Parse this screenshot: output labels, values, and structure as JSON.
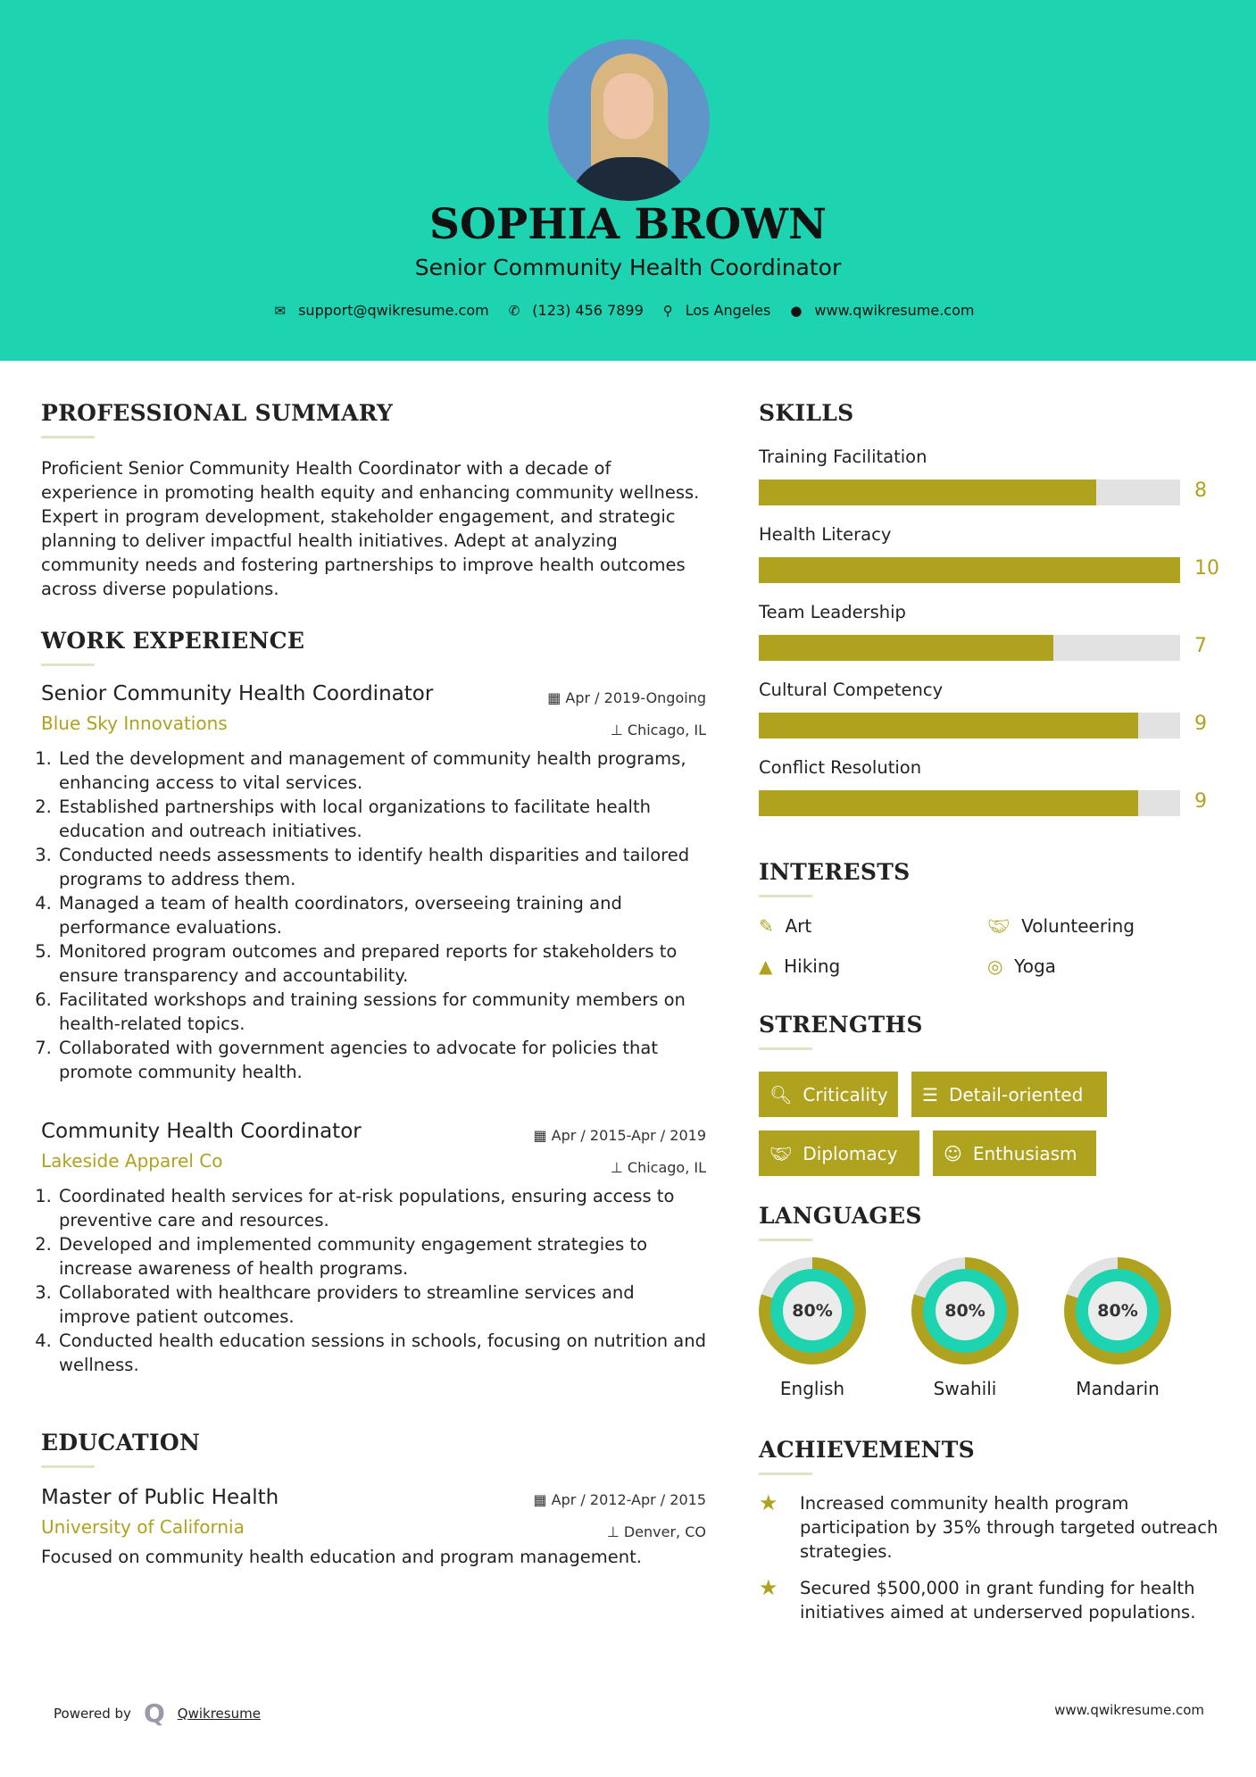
{
  "header": {
    "name": "SOPHIA BROWN",
    "title": "Senior Community Health Coordinator",
    "contacts": [
      {
        "icon": "envelope-icon",
        "text": "support@qwikresume.com"
      },
      {
        "icon": "phone-icon",
        "text": "(123) 456 7899"
      },
      {
        "icon": "map-pin-icon",
        "text": "Los Angeles"
      },
      {
        "icon": "globe-icon",
        "text": "www.qwikresume.com"
      }
    ]
  },
  "colors": {
    "header_bg": "#1dd3b0",
    "accent": "#aea21f",
    "bar_bg": "#e2e2e2"
  },
  "summary": {
    "heading": "PROFESSIONAL SUMMARY",
    "text": "Proficient Senior Community Health Coordinator with a decade of experience in promoting health equity and enhancing community wellness. Expert in program development, stakeholder engagement, and strategic planning to deliver impactful health initiatives. Adept at analyzing community needs and fostering partnerships to improve health outcomes across diverse populations."
  },
  "work": {
    "heading": "WORK EXPERIENCE",
    "jobs": [
      {
        "title": "Senior Community Health Coordinator",
        "company": "Blue Sky Innovations",
        "date": "Apr / 2019-Ongoing",
        "location": "Chicago, IL",
        "items": [
          "Led the development and management of community health programs, enhancing access to vital services.",
          "Established partnerships with local organizations to facilitate health education and outreach initiatives.",
          "Conducted needs assessments to identify health disparities and tailored programs to address them.",
          "Managed a team of health coordinators, overseeing training and performance evaluations.",
          "Monitored program outcomes and prepared reports for stakeholders to ensure transparency and accountability.",
          "Facilitated workshops and training sessions for community members on health-related topics.",
          "Collaborated with government agencies to advocate for policies that promote community health."
        ]
      },
      {
        "title": "Community Health Coordinator",
        "company": "Lakeside Apparel Co",
        "date": "Apr / 2015-Apr / 2019",
        "location": "Chicago, IL",
        "items": [
          "Coordinated health services for at-risk populations, ensuring access to preventive care and resources.",
          "Developed and implemented community engagement strategies to increase awareness of health programs.",
          "Collaborated with healthcare providers to streamline services and improve patient outcomes.",
          "Conducted health education sessions in schools, focusing on nutrition and wellness."
        ]
      }
    ]
  },
  "education": {
    "heading": "EDUCATION",
    "degree": "Master of Public Health",
    "school": "University of California",
    "date": "Apr / 2012-Apr / 2015",
    "location": "Denver, CO",
    "text": "Focused on community health education and program management."
  },
  "skills": {
    "heading": "SKILLS",
    "max": 10,
    "items": [
      {
        "label": "Training Facilitation",
        "value": 8
      },
      {
        "label": "Health Literacy",
        "value": 10
      },
      {
        "label": "Team Leadership",
        "value": 7
      },
      {
        "label": "Cultural Competency",
        "value": 9
      },
      {
        "label": "Conflict Resolution",
        "value": 9
      }
    ]
  },
  "interests": {
    "heading": "INTERESTS",
    "items": [
      {
        "label": "Art",
        "icon": "paintbrush-icon"
      },
      {
        "label": "Volunteering",
        "icon": "handshake-icon"
      },
      {
        "label": "Hiking",
        "icon": "tree-icon"
      },
      {
        "label": "Yoga",
        "icon": "lifebuoy-icon"
      }
    ]
  },
  "strengths": {
    "heading": "STRENGTHS",
    "items": [
      {
        "label": "Criticality",
        "icon": "search-icon"
      },
      {
        "label": "Detail-oriented",
        "icon": "list-icon"
      },
      {
        "label": "Diplomacy",
        "icon": "handshake-icon"
      },
      {
        "label": "Enthusiasm",
        "icon": "smile-icon"
      }
    ]
  },
  "languages": {
    "heading": "LANGUAGES",
    "items": [
      {
        "label": "English",
        "percent": 80,
        "display": "80%"
      },
      {
        "label": "Swahili",
        "percent": 80,
        "display": "80%"
      },
      {
        "label": "Mandarin",
        "percent": 80,
        "display": "80%"
      }
    ]
  },
  "achievements": {
    "heading": "ACHIEVEMENTS",
    "items": [
      "Increased community health program participation by 35% through targeted outreach strategies.",
      "Secured $500,000 in grant funding for health initiatives aimed at underserved populations."
    ]
  },
  "footer": {
    "powered_by": "Powered by",
    "brand": "Qwikresume",
    "url": "www.qwikresume.com"
  }
}
